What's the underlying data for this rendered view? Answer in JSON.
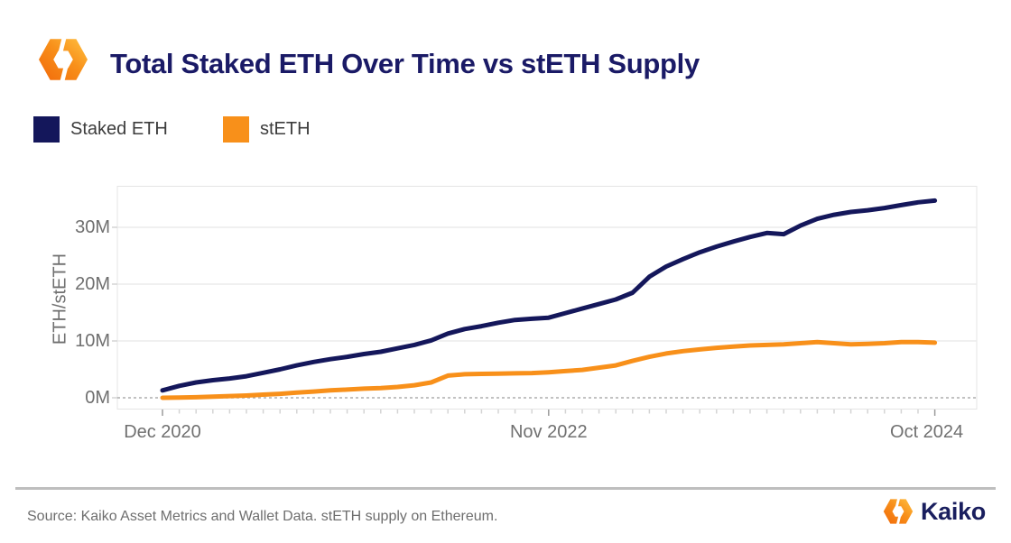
{
  "header": {
    "title": "Total Staked ETH Over Time vs stETH Supply"
  },
  "legend": [
    {
      "label": "Staked ETH",
      "color": "#14175B"
    },
    {
      "label": "stETH",
      "color": "#F8901A"
    }
  ],
  "footer": {
    "source": "Source: Kaiko Asset Metrics and Wallet Data. stETH supply on Ethereum.",
    "brand": "Kaiko"
  },
  "colors": {
    "navy": "#14175B",
    "orange": "#F8901A",
    "title_navy": "#1A1A66",
    "axis_text": "#6F6F6F",
    "legend_text": "#3C3C3C",
    "gridline": "#ECECEC",
    "zero_line": "#ADADAD",
    "plot_border": "#E4E4E4",
    "tick_minor": "#D4D4D4",
    "tick_major": "#9B9B9B",
    "divider": "#BEBEBE",
    "source_text": "#6E6E6E"
  },
  "chart_data": {
    "type": "line",
    "title": "Total Staked ETH Over Time vs stETH Supply",
    "xlabel": "",
    "ylabel": "ETH/stETH",
    "ylim": [
      -2,
      37
    ],
    "grid": "horizontal",
    "zero_line": "dashed",
    "legend_position": "top-left",
    "x_unit": "month",
    "y_ticks": [
      {
        "label": "0M",
        "value": 0
      },
      {
        "label": "10M",
        "value": 10
      },
      {
        "label": "20M",
        "value": 20
      },
      {
        "label": "30M",
        "value": 30
      }
    ],
    "x_tick_labels": [
      {
        "label": "Dec 2020",
        "month_index": 0
      },
      {
        "label": "Nov 2022",
        "month_index": 23
      },
      {
        "label": "Oct 2024",
        "month_index": 46
      }
    ],
    "x": [
      "Dec 2020",
      "Jan 2021",
      "Feb 2021",
      "Mar 2021",
      "Apr 2021",
      "May 2021",
      "Jun 2021",
      "Jul 2021",
      "Aug 2021",
      "Sep 2021",
      "Oct 2021",
      "Nov 2021",
      "Dec 2021",
      "Jan 2022",
      "Feb 2022",
      "Mar 2022",
      "Apr 2022",
      "May 2022",
      "Jun 2022",
      "Jul 2022",
      "Aug 2022",
      "Sep 2022",
      "Oct 2022",
      "Nov 2022",
      "Dec 2022",
      "Jan 2023",
      "Feb 2023",
      "Mar 2023",
      "Apr 2023",
      "May 2023",
      "Jun 2023",
      "Jul 2023",
      "Aug 2023",
      "Sep 2023",
      "Oct 2023",
      "Nov 2023",
      "Dec 2023",
      "Jan 2024",
      "Feb 2024",
      "Mar 2024",
      "Apr 2024",
      "May 2024",
      "Jun 2024",
      "Jul 2024",
      "Aug 2024",
      "Sep 2024",
      "Oct 2024"
    ],
    "series": [
      {
        "name": "Staked ETH",
        "color": "#14175B",
        "unit": "M ETH",
        "values": [
          1.3,
          2.1,
          2.7,
          3.1,
          3.4,
          3.8,
          4.4,
          5.0,
          5.7,
          6.3,
          6.8,
          7.2,
          7.7,
          8.1,
          8.7,
          9.3,
          10.1,
          11.3,
          12.1,
          12.6,
          13.2,
          13.7,
          13.9,
          14.1,
          14.9,
          15.7,
          16.5,
          17.3,
          18.5,
          21.3,
          23.1,
          24.4,
          25.6,
          26.6,
          27.5,
          28.3,
          29.0,
          28.8,
          30.3,
          31.5,
          32.2,
          32.7,
          33.0,
          33.4,
          33.9,
          34.4,
          34.7
        ]
      },
      {
        "name": "stETH",
        "color": "#F8901A",
        "unit": "M stETH",
        "values": [
          0.0,
          0.05,
          0.1,
          0.2,
          0.3,
          0.4,
          0.55,
          0.7,
          0.9,
          1.1,
          1.3,
          1.45,
          1.6,
          1.7,
          1.9,
          2.2,
          2.7,
          3.9,
          4.15,
          4.2,
          4.25,
          4.3,
          4.35,
          4.5,
          4.7,
          4.9,
          5.3,
          5.7,
          6.5,
          7.2,
          7.8,
          8.2,
          8.5,
          8.8,
          9.0,
          9.2,
          9.3,
          9.4,
          9.6,
          9.8,
          9.6,
          9.4,
          9.5,
          9.6,
          9.8,
          9.8,
          9.7
        ]
      }
    ]
  }
}
